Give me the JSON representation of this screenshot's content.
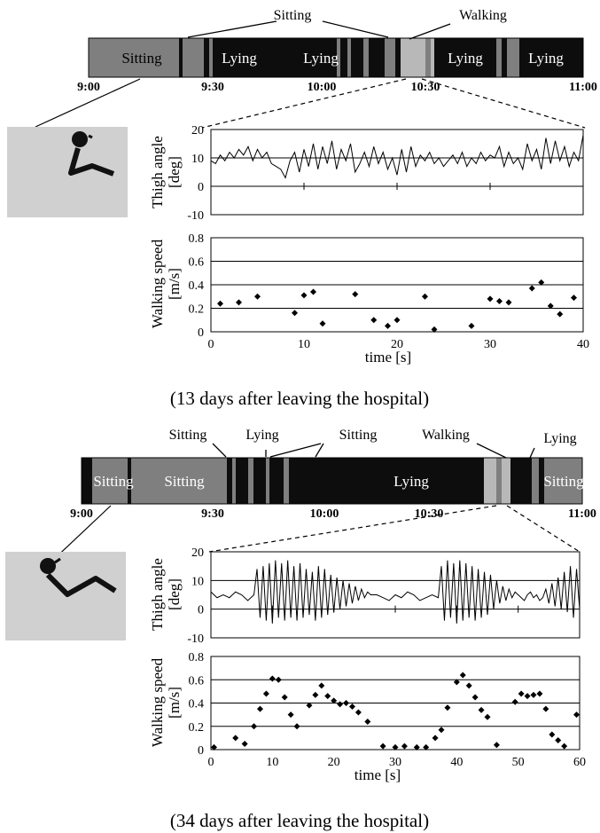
{
  "panels": [
    {
      "caption": "(13 days after leaving the hospital)",
      "timeline": {
        "tick_labels": [
          "9:00",
          "9:30",
          "10:00",
          "10:30",
          "11:00"
        ],
        "labels": [
          {
            "text": "Sitting",
            "where": "inside"
          },
          {
            "text": "Lying",
            "where": "inside"
          },
          {
            "text": "Lying",
            "where": "inside"
          },
          {
            "text": "Lying",
            "where": "inside"
          },
          {
            "text": "Lying",
            "where": "inside"
          },
          {
            "text": "Sitting",
            "where": "above"
          },
          {
            "text": "Walking",
            "where": "above"
          }
        ]
      }
    },
    {
      "caption": "(34 days after leaving the hospital)",
      "timeline": {
        "tick_labels": [
          "9:00",
          "9:30",
          "10:00",
          "10:30",
          "11:00"
        ],
        "labels": [
          {
            "text": "Sitting",
            "where": "inside"
          },
          {
            "text": "Sitting",
            "where": "inside"
          },
          {
            "text": "Lying",
            "where": "inside"
          },
          {
            "text": "Sitting",
            "where": "inside"
          },
          {
            "text": "Sitting",
            "where": "above"
          },
          {
            "text": "Lying",
            "where": "above"
          },
          {
            "text": "Sitting",
            "where": "above"
          },
          {
            "text": "Walking",
            "where": "above"
          },
          {
            "text": "Lying",
            "where": "above"
          }
        ]
      }
    }
  ],
  "colors": {
    "sitting": "#7f7f7f",
    "lying": "#0d0d0d",
    "walking": "#b8b8b8",
    "snapshot_bg": "#d0d0d0",
    "gridline": "#000000"
  },
  "icons": [
    "stick-figure-sitting-icon",
    "stick-figure-lying-icon"
  ],
  "chart_data": [
    {
      "type": "line",
      "series": [
        {
          "values_note": "",
          "x": [
            0,
            0.5,
            1,
            1.5,
            2,
            2.5,
            3,
            3.5,
            4,
            4.5,
            5,
            5.5,
            6,
            6.5,
            7,
            7.5,
            8,
            8.5,
            9,
            9.5,
            10,
            10.5,
            11,
            11.5,
            12,
            12.5,
            13,
            13.5,
            14,
            14.5,
            15,
            15.5,
            16,
            16.5,
            17,
            17.5,
            18,
            18.5,
            19,
            19.5,
            20,
            20.5,
            21,
            21.5,
            22,
            22.5,
            23,
            23.5,
            24,
            24.5,
            25,
            25.5,
            26,
            26.5,
            27,
            27.5,
            28,
            28.5,
            29,
            29.5,
            30,
            30.5,
            31,
            31.5,
            32,
            32.5,
            33,
            33.5,
            34,
            34.5,
            35,
            35.5,
            36,
            36.5,
            37,
            37.5,
            38,
            38.5,
            39,
            39.5,
            40
          ],
          "y": [
            9,
            8,
            11,
            9,
            12,
            10,
            13,
            11,
            14,
            9,
            13,
            10,
            12,
            8,
            7,
            6,
            3,
            9,
            12,
            5,
            13,
            7,
            15,
            6,
            14,
            8,
            16,
            6,
            13,
            9,
            15,
            5,
            8,
            12,
            7,
            14,
            8,
            12,
            6,
            10,
            4,
            13,
            5,
            14,
            7,
            11,
            9,
            12,
            8,
            10,
            7,
            9,
            11,
            8,
            12,
            7,
            10,
            8,
            12,
            9,
            11,
            10,
            14,
            7,
            12,
            8,
            10,
            6,
            15,
            9,
            13,
            6,
            17,
            8,
            16,
            9,
            14,
            7,
            12,
            9,
            18
          ]
        }
      ],
      "xlim": [
        0,
        40
      ],
      "ylim": [
        -10,
        20
      ],
      "yticks": [
        -10,
        0,
        10,
        20
      ],
      "ylabel": "Thigh angle\n[deg]"
    },
    {
      "type": "scatter",
      "x": [
        1,
        3,
        5,
        9,
        10,
        11,
        12,
        15.5,
        17.5,
        19,
        20,
        23,
        24,
        28,
        30,
        31,
        32,
        34.5,
        35.5,
        36.5,
        37.5,
        39
      ],
      "y": [
        0.24,
        0.25,
        0.3,
        0.16,
        0.31,
        0.34,
        0.07,
        0.32,
        0.1,
        0.05,
        0.1,
        0.3,
        0.02,
        0.05,
        0.28,
        0.26,
        0.25,
        0.37,
        0.42,
        0.22,
        0.15,
        0.29
      ],
      "xlim": [
        0,
        40
      ],
      "ylim": [
        0,
        0.8
      ],
      "xticks": [
        0,
        10,
        20,
        30,
        40
      ],
      "yticks": [
        0,
        0.2,
        0.4,
        0.6,
        0.8
      ],
      "ylabel": "Walking speed\n[m/s]",
      "xlabel": "time [s]"
    },
    {
      "type": "line",
      "series": [
        {
          "values_note": "",
          "x": [
            0,
            1,
            2,
            3,
            4,
            5,
            6,
            7,
            7.5,
            8,
            8.5,
            9,
            9.5,
            10,
            10.5,
            11,
            11.5,
            12,
            12.5,
            13,
            13.5,
            14,
            14.5,
            15,
            15.5,
            16,
            16.5,
            17,
            17.5,
            18,
            18.5,
            19,
            19.5,
            20,
            20.5,
            21,
            21.5,
            22,
            22.5,
            23,
            23.5,
            24,
            24.5,
            25,
            25.5,
            26,
            27,
            28,
            29,
            30,
            31,
            32,
            33,
            34,
            35,
            36,
            37,
            37.5,
            38,
            38.5,
            39,
            39.5,
            40,
            40.5,
            41,
            41.5,
            42,
            42.5,
            43,
            43.5,
            44,
            44.5,
            45,
            45.5,
            46,
            46.5,
            47,
            47.5,
            48,
            48.5,
            49,
            49.5,
            50,
            50.5,
            51,
            51.5,
            52,
            52.5,
            53,
            53.5,
            54,
            54.5,
            55,
            55.5,
            56,
            56.5,
            57,
            57.5,
            58,
            58.5,
            59,
            59.5,
            60
          ],
          "y": [
            6,
            4,
            5,
            4,
            6,
            5,
            3,
            5,
            14,
            -3,
            15,
            -4,
            16,
            -5,
            17,
            -3,
            16,
            -4,
            17,
            -3,
            15,
            -4,
            16,
            -3,
            14,
            -2,
            13,
            -4,
            15,
            -3,
            14,
            -2,
            12,
            -1,
            11,
            0,
            10,
            1,
            9,
            2,
            8,
            3,
            7,
            4,
            6,
            5,
            5,
            4,
            3,
            5,
            4,
            6,
            5,
            3,
            4,
            5,
            4,
            15,
            -4,
            17,
            -3,
            16,
            -5,
            17,
            -4,
            16,
            -3,
            15,
            -4,
            14,
            -3,
            13,
            -2,
            12,
            0,
            10,
            2,
            8,
            3,
            7,
            4,
            6,
            5,
            4,
            3,
            5,
            6,
            4,
            5,
            3,
            4,
            7,
            2,
            9,
            1,
            11,
            0,
            13,
            -1,
            15,
            -3,
            14,
            0
          ]
        }
      ],
      "xlim": [
        0,
        60
      ],
      "ylim": [
        -10,
        20
      ],
      "yticks": [
        -10,
        0,
        10,
        20
      ],
      "ylabel": "Thigh angle\n[deg]"
    },
    {
      "type": "scatter",
      "x": [
        0.5,
        4,
        5.5,
        7,
        8,
        9,
        10,
        11,
        12,
        13,
        14,
        16,
        17,
        18,
        19,
        20,
        21,
        22,
        23,
        24,
        25.5,
        28,
        30,
        31.5,
        33.5,
        35,
        36.5,
        37.5,
        38.5,
        40,
        41,
        42,
        43,
        44,
        45,
        46.5,
        49.5,
        50.5,
        51.5,
        52.5,
        53.5,
        54.5,
        55.5,
        56.5,
        57.5,
        59.5
      ],
      "y": [
        0.02,
        0.1,
        0.05,
        0.2,
        0.35,
        0.48,
        0.61,
        0.6,
        0.45,
        0.3,
        0.2,
        0.38,
        0.47,
        0.55,
        0.46,
        0.42,
        0.39,
        0.4,
        0.37,
        0.32,
        0.24,
        0.03,
        0.02,
        0.03,
        0.02,
        0.02,
        0.1,
        0.17,
        0.36,
        0.58,
        0.64,
        0.55,
        0.45,
        0.34,
        0.28,
        0.04,
        0.41,
        0.48,
        0.46,
        0.47,
        0.48,
        0.35,
        0.13,
        0.08,
        0.03,
        0.3
      ],
      "xlim": [
        0,
        60
      ],
      "ylim": [
        0,
        0.8
      ],
      "xticks": [
        0,
        10,
        20,
        30,
        40,
        50,
        60
      ],
      "yticks": [
        0,
        0.2,
        0.4,
        0.6,
        0.8
      ],
      "ylabel": "Walking speed\n[m/s]",
      "xlabel": "time [s]"
    }
  ]
}
